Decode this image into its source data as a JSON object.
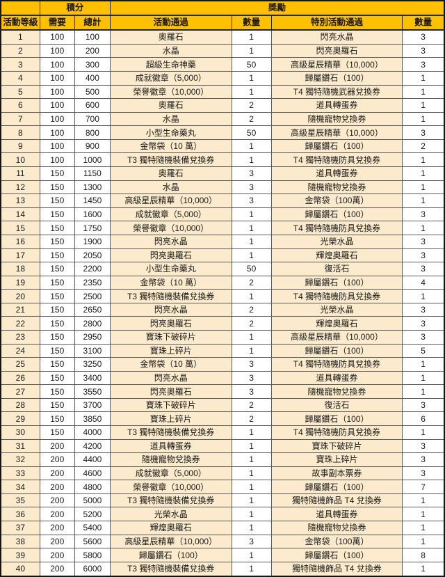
{
  "table": {
    "header": {
      "corner": "",
      "points_group": "積分",
      "rewards_group": "獎勵",
      "col_level": "活動等級",
      "col_need": "需要",
      "col_total": "總計",
      "col_activity_pass": "活動通過",
      "col_qty1": "數量",
      "col_special_pass": "特別活動通過",
      "col_qty2": "數量"
    },
    "rows": [
      [
        1,
        100,
        100,
        "奧羅石",
        1,
        "閃亮水晶",
        3
      ],
      [
        2,
        100,
        200,
        "水晶",
        1,
        "閃亮奧羅石",
        3
      ],
      [
        3,
        100,
        300,
        "超級生命神藥",
        50,
        "高級星辰精華（10,000）",
        3
      ],
      [
        4,
        100,
        400,
        "成就徽章（5,000）",
        1,
        "歸屬鑽石（100）",
        1
      ],
      [
        5,
        100,
        500,
        "榮譽徽章（10,000）",
        1,
        "T4 獨特隨機武器兌換券",
        1
      ],
      [
        6,
        100,
        600,
        "奧羅石",
        2,
        "道具轉蛋券",
        1
      ],
      [
        7,
        100,
        700,
        "水晶",
        2,
        "隨機寵物兌換券",
        1
      ],
      [
        8,
        100,
        800,
        "小型生命藥丸",
        50,
        "高級星辰精華（10,000）",
        3
      ],
      [
        9,
        100,
        900,
        "金幣袋（10 萬）",
        1,
        "歸屬鑽石（100）",
        2
      ],
      [
        10,
        100,
        1000,
        "T3 獨特隨機裝備兌換券",
        1,
        "T4 獨特隨機防具兌換券",
        1
      ],
      [
        11,
        150,
        1150,
        "奧羅石",
        3,
        "道具轉蛋券",
        1
      ],
      [
        12,
        150,
        1300,
        "水晶",
        3,
        "隨機寵物兌換券",
        1
      ],
      [
        13,
        150,
        1450,
        "高級星辰精華（10,000）",
        3,
        "金幣袋（100萬）",
        1
      ],
      [
        14,
        150,
        1600,
        "成就徽章（5,000）",
        1,
        "歸屬鑽石（100）",
        3
      ],
      [
        15,
        150,
        1750,
        "榮譽徽章（10,000）",
        1,
        "T4 獨特隨機防具兌換券",
        1
      ],
      [
        16,
        150,
        1900,
        "閃亮水晶",
        1,
        "光榮水晶",
        3
      ],
      [
        17,
        150,
        2050,
        "閃亮奧羅石",
        1,
        "輝煌奧羅石",
        3
      ],
      [
        18,
        150,
        2200,
        "小型生命藥丸",
        50,
        "復活石",
        3
      ],
      [
        19,
        150,
        2350,
        "金幣袋（10 萬）",
        2,
        "歸屬鑽石（100）",
        4
      ],
      [
        20,
        150,
        2500,
        "T3 獨特隨機裝備兌換券",
        1,
        "T4 獨特隨機防具兌換券",
        1
      ],
      [
        21,
        150,
        2650,
        "閃亮水晶",
        2,
        "光榮水晶",
        3
      ],
      [
        22,
        150,
        2800,
        "閃亮奧羅石",
        2,
        "輝煌奧羅石",
        3
      ],
      [
        23,
        150,
        2950,
        "寶珠下破碎片",
        1,
        "高級星辰精華（10,000）",
        3
      ],
      [
        24,
        150,
        3100,
        "寶珠上碎片",
        1,
        "歸屬鑽石（100）",
        5
      ],
      [
        25,
        150,
        3250,
        "金幣袋（10 萬）",
        3,
        "T4 獨特隨機防具兌換券",
        1
      ],
      [
        26,
        150,
        3400,
        "閃亮水晶",
        3,
        "道具轉蛋券",
        1
      ],
      [
        27,
        150,
        3550,
        "閃亮奧羅石",
        3,
        "隨機寵物兌換券",
        1
      ],
      [
        28,
        150,
        3700,
        "寶珠下破碎片",
        2,
        "復活石",
        3
      ],
      [
        29,
        150,
        3850,
        "寶珠上碎片",
        2,
        "歸屬鑽石（100）",
        6
      ],
      [
        30,
        150,
        4000,
        "T3 獨特隨機裝備兌換券",
        1,
        "T4 獨特隨機防具兌換券",
        1
      ],
      [
        31,
        200,
        4200,
        "道具轉蛋券",
        1,
        "寶珠下破碎片",
        3
      ],
      [
        32,
        200,
        4400,
        "隨機寵物兌換券",
        1,
        "寶珠上碎片",
        3
      ],
      [
        33,
        200,
        4600,
        "成就徽章（5,000）",
        1,
        "故事副本票券",
        3
      ],
      [
        34,
        200,
        4800,
        "榮譽徽章（10,000）",
        1,
        "歸屬鑽石（100）",
        7
      ],
      [
        35,
        200,
        5000,
        "T3 獨特隨機裝備兌換券",
        1,
        "獨特隨機飾品 T4 兌換券",
        1
      ],
      [
        36,
        200,
        5200,
        "光榮水晶",
        1,
        "道具轉蛋券",
        1
      ],
      [
        37,
        200,
        5400,
        "輝煌奧羅石",
        1,
        "隨機寵物兌換券",
        1
      ],
      [
        38,
        200,
        5600,
        "高級星辰精華（10,000）",
        3,
        "金幣袋（100萬）",
        1
      ],
      [
        39,
        200,
        5800,
        "歸屬鑽石（100）",
        1,
        "歸屬鑽石（100）",
        8
      ],
      [
        40,
        200,
        6000,
        "T3 獨特隨機裝備兌換券",
        1,
        "獨特隨機飾品 T4 兌換券",
        1
      ]
    ]
  },
  "colors": {
    "header_bg": "#FFC000",
    "row_tint": "#FBEACB",
    "row_white": "#FFFFFF",
    "inner_border": "#5a5a5a",
    "outer_border": "#151515",
    "text": "#1a1a1a"
  }
}
